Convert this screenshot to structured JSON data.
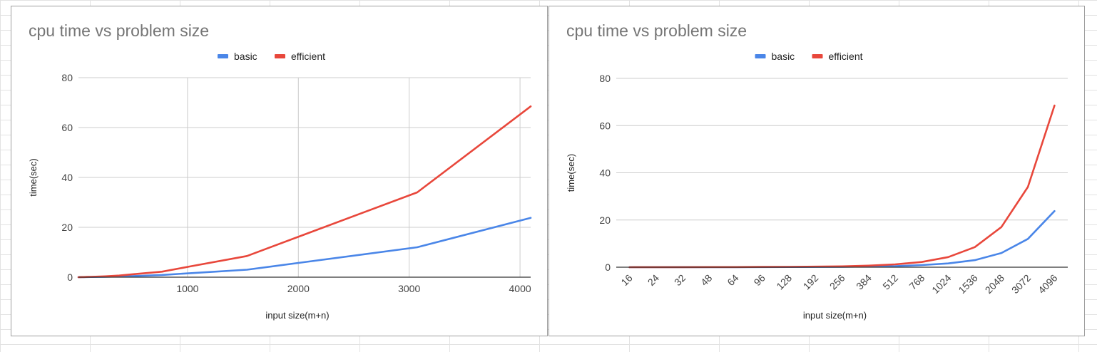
{
  "colors": {
    "basic": "#4a86e8",
    "efficient": "#e8473b",
    "grid": "#cccccc",
    "baseline": "#333333"
  },
  "chart_data": [
    {
      "type": "line",
      "title": "cpu time vs problem size",
      "xlabel": "input size(m+n)",
      "ylabel": "time(sec)",
      "x_scale": "linear",
      "xlim": [
        16,
        4096
      ],
      "ylim": [
        0,
        80
      ],
      "x_ticks": [
        1000,
        2000,
        3000,
        4000
      ],
      "x_tick_labels": [
        "1000",
        "2000",
        "3000",
        "4000"
      ],
      "y_ticks": [
        0,
        20,
        40,
        60,
        80
      ],
      "y_tick_labels": [
        "0",
        "20",
        "40",
        "60",
        "80"
      ],
      "grid": "both",
      "legend_position": "top",
      "x": [
        16,
        24,
        32,
        48,
        64,
        96,
        128,
        192,
        256,
        384,
        512,
        768,
        1024,
        1536,
        2048,
        3072,
        4096
      ],
      "series": [
        {
          "name": "basic",
          "color_key": "basic",
          "values": [
            0.01,
            0.01,
            0.02,
            0.03,
            0.04,
            0.06,
            0.08,
            0.12,
            0.17,
            0.3,
            0.45,
            0.9,
            1.6,
            3.0,
            6.0,
            12.0,
            23.8
          ]
        },
        {
          "name": "efficient",
          "color_key": "efficient",
          "values": [
            0.01,
            0.02,
            0.03,
            0.05,
            0.07,
            0.11,
            0.15,
            0.24,
            0.35,
            0.65,
            1.2,
            2.2,
            4.3,
            8.5,
            17.0,
            34.0,
            68.5
          ]
        }
      ]
    },
    {
      "type": "line",
      "title": "cpu time vs problem size",
      "xlabel": "input size(m+n)",
      "ylabel": "time(sec)",
      "x_scale": "categorical",
      "categories": [
        "16",
        "24",
        "32",
        "48",
        "64",
        "96",
        "128",
        "192",
        "256",
        "384",
        "512",
        "768",
        "1024",
        "1536",
        "2048",
        "3072",
        "4096"
      ],
      "ylim": [
        0,
        80
      ],
      "y_ticks": [
        0,
        20,
        40,
        60,
        80
      ],
      "y_tick_labels": [
        "0",
        "20",
        "40",
        "60",
        "80"
      ],
      "grid": "horizontal",
      "legend_position": "top",
      "series": [
        {
          "name": "basic",
          "color_key": "basic",
          "values": [
            0.01,
            0.01,
            0.02,
            0.03,
            0.04,
            0.06,
            0.08,
            0.12,
            0.17,
            0.3,
            0.45,
            0.9,
            1.6,
            3.0,
            6.0,
            12.0,
            23.8
          ]
        },
        {
          "name": "efficient",
          "color_key": "efficient",
          "values": [
            0.01,
            0.02,
            0.03,
            0.05,
            0.07,
            0.11,
            0.15,
            0.24,
            0.35,
            0.65,
            1.2,
            2.2,
            4.3,
            8.5,
            17.0,
            34.0,
            68.5
          ]
        }
      ]
    }
  ]
}
